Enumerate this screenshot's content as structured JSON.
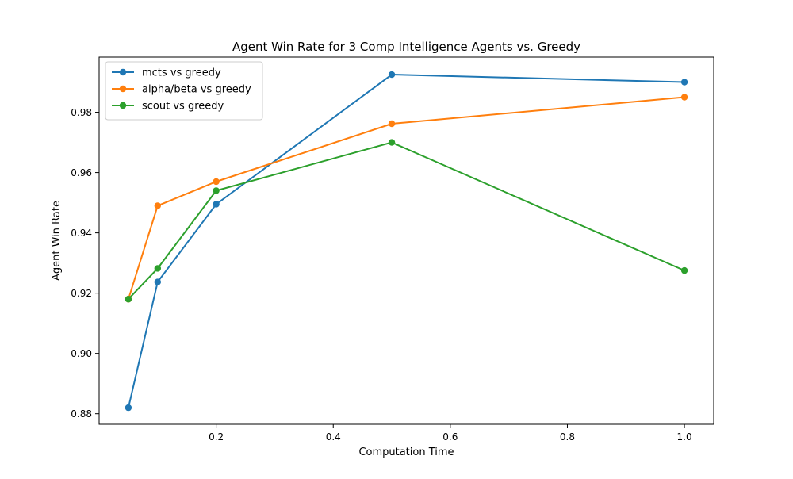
{
  "chart_data": {
    "type": "line",
    "title": "Agent Win Rate for 3 Comp Intelligence Agents vs. Greedy",
    "xlabel": "Computation Time",
    "ylabel": "Agent Win Rate",
    "xlim": [
      0.0,
      1.05
    ],
    "ylim": [
      0.8765,
      0.9983
    ],
    "x_ticks": [
      0.2,
      0.4,
      0.6,
      0.8,
      1.0
    ],
    "x_tick_labels": [
      "0.2",
      "0.4",
      "0.6",
      "0.8",
      "1.0"
    ],
    "y_ticks": [
      0.88,
      0.9,
      0.92,
      0.94,
      0.96,
      0.98
    ],
    "y_tick_labels": [
      "0.88",
      "0.90",
      "0.92",
      "0.94",
      "0.96",
      "0.98"
    ],
    "grid": false,
    "legend_position": "upper-left",
    "marker": "circle",
    "x": [
      0.05,
      0.1,
      0.2,
      0.5,
      1.0
    ],
    "series": [
      {
        "name": "mcts vs greedy",
        "color": "#1f77b4",
        "values": [
          0.882,
          0.9237,
          0.9495,
          0.9925,
          0.99
        ]
      },
      {
        "name": "alpha/beta vs greedy",
        "color": "#ff7f0e",
        "values": [
          0.918,
          0.949,
          0.957,
          0.9762,
          0.985
        ]
      },
      {
        "name": "scout vs greedy",
        "color": "#2ca02c",
        "values": [
          0.918,
          0.9282,
          0.954,
          0.97,
          0.9275
        ]
      }
    ]
  }
}
